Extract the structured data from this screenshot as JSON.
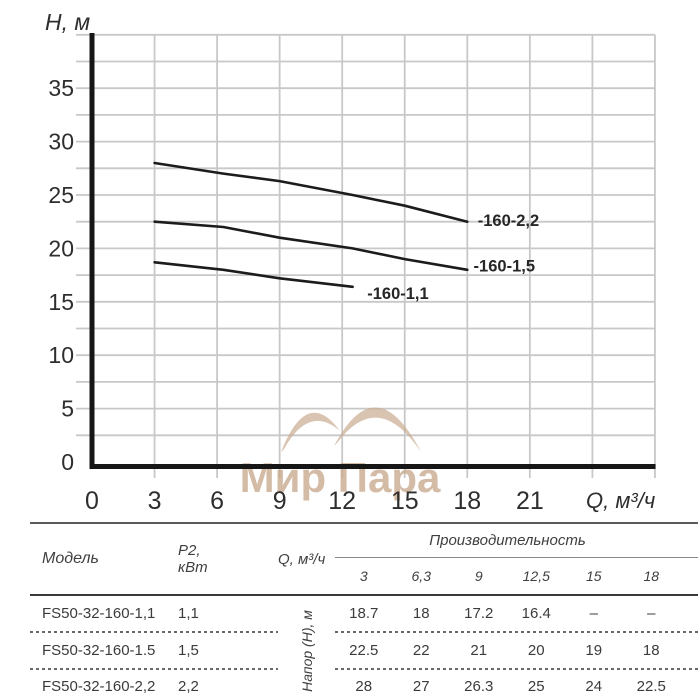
{
  "watermark": {
    "text": "Мир Пара",
    "color": "#c9ab90"
  },
  "chart_data": {
    "type": "line",
    "title": "",
    "xlabel": "Q, м³/ч",
    "ylabel": "H, м",
    "xlim": [
      0,
      27
    ],
    "ylim": [
      0,
      40
    ],
    "xticks": [
      0,
      3,
      6,
      9,
      12,
      15,
      18,
      21
    ],
    "yticks": [
      0,
      5,
      10,
      15,
      20,
      25,
      30,
      35
    ],
    "x_grid_step": 3,
    "y_grid_step": 2.5,
    "grid": true,
    "legend_position": "inline-labels",
    "series": [
      {
        "name": "-160-2,2",
        "x": [
          3,
          6.3,
          9,
          12.5,
          15,
          18
        ],
        "y": [
          28,
          27,
          26.3,
          25,
          24,
          22.5
        ],
        "label_at": [
          18.5,
          22.1
        ]
      },
      {
        "name": "-160-1,5",
        "x": [
          3,
          6.3,
          9,
          12.5,
          15,
          18
        ],
        "y": [
          22.5,
          22,
          21,
          20,
          19,
          18
        ],
        "label_at": [
          18.3,
          17.85
        ]
      },
      {
        "name": "-160-1,1",
        "x": [
          3,
          6.3,
          9,
          12.5
        ],
        "y": [
          18.7,
          18,
          17.2,
          16.4
        ],
        "label_at": [
          13.2,
          15.25
        ]
      }
    ]
  },
  "table": {
    "col_model": "Модель",
    "col_p2_line1": "P2,",
    "col_p2_line2": "кВт",
    "col_q": "Q, м³/ч",
    "group_header": "Производительность",
    "subheaders": [
      "3",
      "6,3",
      "9",
      "12,5",
      "15",
      "18"
    ],
    "row_axis_label": "Напор (Н), м",
    "rows": [
      {
        "model": "FS50-32-160-1,1",
        "p2": "1,1",
        "values": [
          "18.7",
          "18",
          "17.2",
          "16.4",
          "–",
          "–"
        ]
      },
      {
        "model": "FS50-32-160-1.5",
        "p2": "1,5",
        "values": [
          "22.5",
          "22",
          "21",
          "20",
          "19",
          "18"
        ]
      },
      {
        "model": "FS50-32-160-2,2",
        "p2": "2,2",
        "values": [
          "28",
          "27",
          "26.3",
          "25",
          "24",
          "22.5"
        ]
      }
    ]
  }
}
